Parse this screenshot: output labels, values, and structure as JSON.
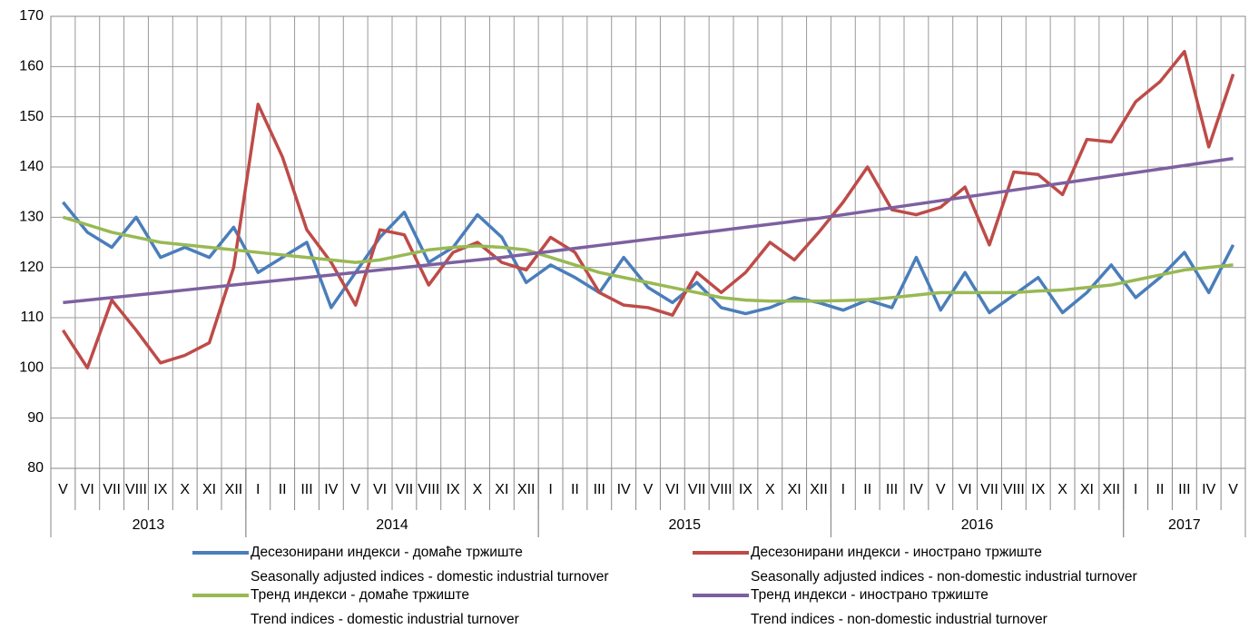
{
  "chart_data": {
    "type": "line",
    "categories": [
      "V",
      "VI",
      "VII",
      "VIII",
      "IX",
      "X",
      "XI",
      "XII",
      "I",
      "II",
      "III",
      "IV",
      "V",
      "VI",
      "VII",
      "VIII",
      "IX",
      "X",
      "XI",
      "XII",
      "I",
      "II",
      "III",
      "IV",
      "V",
      "VI",
      "VII",
      "VIII",
      "IX",
      "X",
      "XI",
      "XII",
      "I",
      "II",
      "III",
      "IV",
      "V",
      "VI",
      "VII",
      "VIII",
      "IX",
      "X",
      "XI",
      "XII",
      "I",
      "II",
      "III",
      "IV",
      "V"
    ],
    "category_groups": [
      {
        "label": "2013",
        "count": 8
      },
      {
        "label": "2014",
        "count": 12
      },
      {
        "label": "2015",
        "count": 12
      },
      {
        "label": "2016",
        "count": 12
      },
      {
        "label": "2017",
        "count": 5
      }
    ],
    "ylim": [
      80,
      170
    ],
    "yticks": [
      80,
      90,
      100,
      110,
      120,
      130,
      140,
      150,
      160,
      170
    ],
    "grid": true,
    "series": [
      {
        "name": "Десезонирани индекси - домаће тржиште",
        "name_en": "Seasonally adjusted indices - domestic industrial turnover",
        "color": "#4a7ebb",
        "values": [
          133,
          127,
          124,
          130,
          122,
          124,
          122,
          128,
          119,
          122,
          125,
          112,
          119,
          126,
          131,
          121,
          124,
          130.5,
          126,
          117,
          120.5,
          118,
          115,
          122,
          116,
          113,
          117,
          112,
          110.8,
          112,
          114,
          113,
          111.5,
          113.5,
          112,
          122,
          111.5,
          119,
          111,
          114.5,
          118,
          111,
          115,
          120.5,
          114,
          118,
          123,
          115,
          124.5
        ]
      },
      {
        "name": "Десезонирани индекси - иностранo тржиште",
        "name_en": "Seasonally adjusted indices - non-domestic industrial turnover",
        "color": "#be4b48",
        "values": [
          107.5,
          100,
          113.5,
          107.5,
          101,
          102.5,
          105,
          120,
          152.5,
          142,
          127.5,
          121,
          112.5,
          127.5,
          126.5,
          116.5,
          123,
          125,
          121,
          119.5,
          126,
          123,
          115,
          112.5,
          112,
          110.5,
          119,
          115,
          119,
          125,
          121.5,
          127,
          133,
          140,
          131.5,
          130.5,
          132,
          136,
          124.5,
          139,
          138.5,
          134.5,
          145.5,
          145,
          153,
          157,
          163,
          144,
          158.5
        ]
      },
      {
        "name": "Тренд индекси - домаће тржиште",
        "name_en": "Trend indices - domestic industrial turnover",
        "color": "#98b954",
        "values": [
          130,
          128.5,
          127,
          126,
          125,
          124.5,
          124,
          123.5,
          123,
          122.5,
          122,
          121.5,
          121,
          121.5,
          122.5,
          123.5,
          124,
          124.3,
          124,
          123.5,
          122,
          120.5,
          119,
          118,
          117,
          116,
          115,
          114,
          113.5,
          113.3,
          113.3,
          113.3,
          113.4,
          113.6,
          114,
          114.5,
          115,
          115,
          115,
          115,
          115.3,
          115.5,
          116,
          116.5,
          117.5,
          118.5,
          119.5,
          120,
          120.5
        ]
      },
      {
        "name": "Тренд индекси - иностранo тржиште",
        "name_en": "Trend indices - non-domestic industrial turnover",
        "color": "#7d60a0",
        "values": [
          113,
          113.5,
          114,
          114.5,
          115,
          115.5,
          116,
          116.5,
          117,
          117.5,
          118,
          118.5,
          119,
          119.5,
          120,
          120.5,
          121,
          121.5,
          122,
          122.6,
          123.2,
          123.8,
          124.4,
          125,
          125.6,
          126.2,
          126.8,
          127.4,
          128,
          128.6,
          129.2,
          129.8,
          130.5,
          131.2,
          131.9,
          132.6,
          133.3,
          134,
          134.7,
          135.4,
          136.1,
          136.8,
          137.5,
          138.2,
          138.9,
          139.6,
          140.3,
          141,
          141.7
        ]
      }
    ]
  }
}
